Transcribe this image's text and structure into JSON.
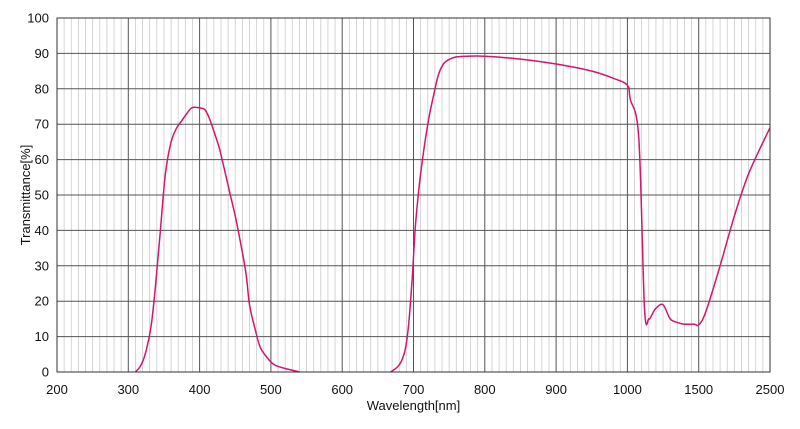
{
  "chart_data": {
    "type": "line",
    "xlabel": "Wavelength[nm]",
    "ylabel": "Transmittance[%]",
    "ylim": [
      0,
      100
    ],
    "y_ticks": [
      "0",
      "10",
      "20",
      "30",
      "40",
      "50",
      "60",
      "70",
      "80",
      "90",
      "100"
    ],
    "x_ticks": [
      "200",
      "300",
      "400",
      "500",
      "600",
      "700",
      "800",
      "900",
      "1000",
      "1500",
      "2500"
    ],
    "x_axis_note": "piecewise scale: linear 200–1000 nm, then compressed 1000–1500 and 1500–2500 nm",
    "grid": true,
    "legend": "none",
    "series": [
      {
        "color": "#d0166e",
        "x": [
          310,
          318,
          325,
          332,
          338,
          345,
          352,
          360,
          368,
          375,
          382,
          388,
          393,
          400,
          407,
          413,
          420,
          428,
          435,
          442,
          450,
          457,
          465,
          470,
          478,
          485,
          495,
          505,
          520,
          540
        ],
        "y": [
          0,
          2,
          6,
          13,
          24,
          40,
          56,
          65,
          69,
          71,
          73,
          74.5,
          74.8,
          74.6,
          74.2,
          72,
          68,
          63,
          57,
          51,
          44,
          37,
          28,
          19,
          12,
          7,
          4,
          2,
          1,
          0
        ]
      },
      {
        "color": "#d0166e",
        "x": [
          668,
          680,
          688,
          693,
          698,
          703,
          710,
          720,
          728,
          735,
          742,
          750,
          760,
          775,
          800,
          850,
          900,
          950,
          980,
          1000,
          1020,
          1080,
          1120,
          1150,
          1170,
          1200,
          1250,
          1300,
          1350,
          1400,
          1470,
          1500,
          1600,
          1800,
          2000,
          2200,
          2500
        ],
        "y": [
          0,
          2,
          6,
          13,
          26,
          42,
          56,
          70,
          78,
          84,
          87,
          88.3,
          89,
          89.2,
          89.2,
          88.4,
          87,
          85,
          83,
          81,
          77,
          66,
          18,
          15,
          16,
          18,
          19,
          15,
          14,
          13.5,
          13.5,
          13.3,
          17,
          30,
          44,
          56,
          69
        ]
      }
    ]
  }
}
